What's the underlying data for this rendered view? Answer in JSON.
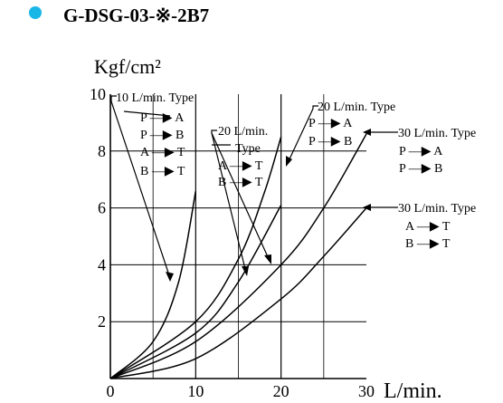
{
  "header": {
    "bullet_color": "#19b7e6",
    "title": "G-DSG-03-※-2B7"
  },
  "chart_data": {
    "type": "line",
    "ylabel": "Kgf/cm²",
    "xlabel": "L/min.",
    "xlim": [
      0,
      30
    ],
    "ylim": [
      0,
      10
    ],
    "x_ticks": [
      0,
      10,
      20,
      30
    ],
    "y_ticks": [
      2,
      4,
      6,
      8,
      10
    ],
    "x_tick_labels": [
      "0",
      "10",
      "20",
      "30"
    ],
    "y_tick_labels": [
      "2",
      "4",
      "6",
      "8",
      "10"
    ],
    "grid": true,
    "series": [
      {
        "points": [
          [
            0,
            0
          ],
          [
            5,
            1.3
          ],
          [
            8,
            3.4
          ],
          [
            10,
            6.6
          ]
        ]
      },
      {
        "points": [
          [
            0,
            0
          ],
          [
            10,
            2.0
          ],
          [
            15,
            4.2
          ],
          [
            18,
            6.5
          ],
          [
            20,
            8.5
          ]
        ]
      },
      {
        "points": [
          [
            0,
            0
          ],
          [
            10,
            1.6
          ],
          [
            15,
            3.4
          ],
          [
            20,
            6.1
          ]
        ]
      },
      {
        "points": [
          [
            0,
            0
          ],
          [
            10,
            1.3
          ],
          [
            20,
            4.0
          ],
          [
            25,
            6.0
          ],
          [
            30,
            8.6
          ]
        ]
      },
      {
        "points": [
          [
            0,
            0
          ],
          [
            10,
            0.7
          ],
          [
            20,
            2.8
          ],
          [
            25,
            4.3
          ],
          [
            30,
            6.0
          ]
        ]
      }
    ],
    "annotations": [
      {
        "lines": [
          "10 L/min. Type",
          "P —▶ A",
          "P —▶ B",
          "A —▶ T",
          "B —▶ T"
        ]
      },
      {
        "lines": [
          "20 L/min.",
          "Type",
          "A —▶ T",
          "B —▶ T"
        ]
      },
      {
        "lines": [
          "20 L/min. Type",
          "P —▶ A",
          "P —▶ B"
        ]
      },
      {
        "lines": [
          "30 L/min. Type",
          "P —▶ A",
          "P —▶ B"
        ]
      },
      {
        "lines": [
          "30 L/min. Type",
          "A —▶ T",
          "B —▶ T"
        ]
      }
    ]
  }
}
